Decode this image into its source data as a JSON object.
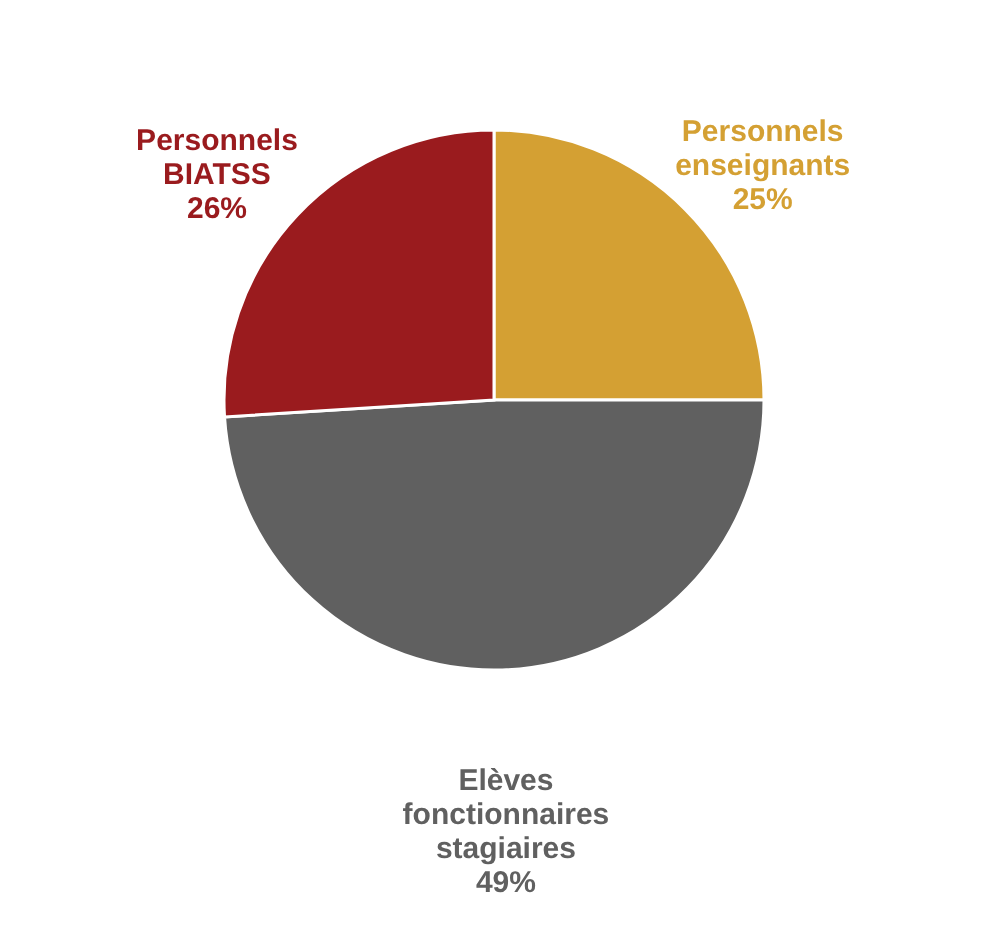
{
  "chart_data": {
    "type": "pie",
    "categories": [
      "Personnels\nenseignants",
      "Elèves\nfonctionnaires\nstagiaires",
      "Personnels\nBIATSS"
    ],
    "values": [
      25,
      49,
      26
    ],
    "value_labels": [
      "25%",
      "49%",
      "26%"
    ],
    "colors": [
      "#d4a033",
      "#606060",
      "#9a1b1e"
    ]
  }
}
